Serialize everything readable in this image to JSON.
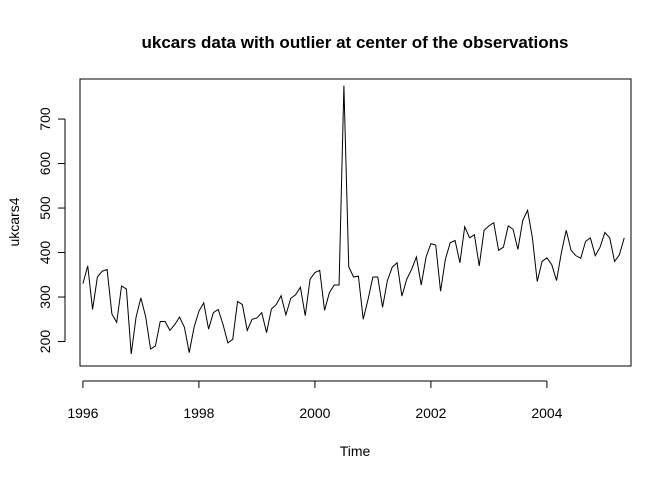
{
  "chart_data": {
    "type": "line",
    "title": "ukcars data with outlier at center of the observations",
    "xlabel": "Time",
    "ylabel": "ukcars4",
    "xlim": [
      1995.95,
      2005.45
    ],
    "ylim": [
      145,
      790
    ],
    "x_ticks": [
      1996,
      1998,
      2000,
      2002,
      2004
    ],
    "x_tick_labels": [
      "1996",
      "1998",
      "2000",
      "2002",
      "2004"
    ],
    "y_ticks": [
      200,
      300,
      400,
      500,
      600,
      700
    ],
    "y_tick_labels": [
      "200",
      "300",
      "400",
      "500",
      "600",
      "700"
    ],
    "series": [
      {
        "start": 1996.0,
        "frequency": 12,
        "values": [
          330,
          370,
          272,
          345,
          358,
          362,
          262,
          243,
          325,
          318,
          172,
          255,
          298,
          255,
          183,
          190,
          245,
          245,
          225,
          238,
          255,
          232,
          175,
          232,
          268,
          287,
          228,
          265,
          272,
          238,
          197,
          205,
          290,
          283,
          225,
          250,
          253,
          265,
          220,
          273,
          283,
          303,
          260,
          297,
          305,
          322,
          258,
          340,
          355,
          360,
          270,
          310,
          327,
          327,
          775,
          368,
          345,
          347,
          250,
          295,
          345,
          345,
          277,
          337,
          367,
          377,
          302,
          340,
          362,
          390,
          327,
          390,
          420,
          417,
          313,
          385,
          422,
          427,
          377,
          458,
          433,
          440,
          370,
          450,
          460,
          467,
          405,
          412,
          460,
          452,
          407,
          472,
          495,
          433,
          335,
          380,
          388,
          373,
          337,
          400,
          450,
          405,
          393,
          387,
          425,
          433,
          393,
          412,
          445,
          433,
          380,
          395,
          433
        ]
      }
    ],
    "grid": false,
    "line_color": "#000000"
  }
}
